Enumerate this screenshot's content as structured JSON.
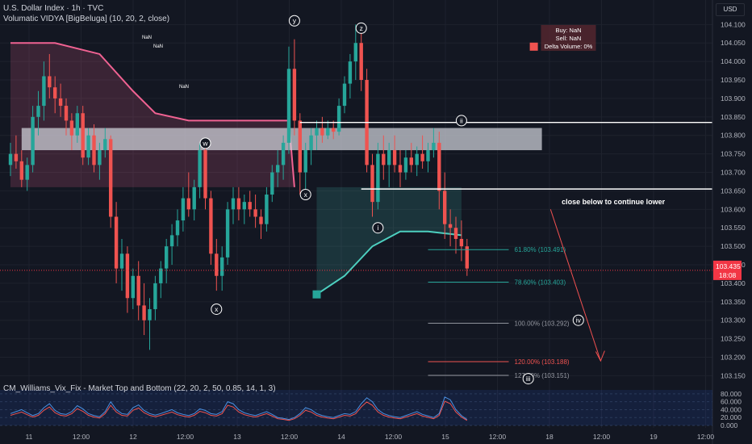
{
  "header": {
    "symbol": "U.S. Dollar Index · 1h · TVC",
    "indicator": "Volumatic VIDYA [BigBeluga] (10, 20, 2, close)",
    "currency_button": "USD"
  },
  "oscillator": {
    "title": "CM_Williams_Vix_Fix - Market Top and Bottom (22, 20, 2, 50, 0.85, 14, 1, 3)"
  },
  "colors": {
    "background": "#131722",
    "up": "#26a69a",
    "down": "#ef5350",
    "vidya_bear": "#f06292",
    "vidya_bull": "#4dd0c0",
    "zone": "#d1d4dc",
    "arrow": "#f05050",
    "price_label": "#f23645"
  },
  "chart_data": {
    "type": "candlestick",
    "symbol": "U.S. Dollar Index",
    "timeframe": "1h",
    "y_axis": {
      "ticks": [
        "104.100",
        "104.050",
        "104.000",
        "103.950",
        "103.900",
        "103.850",
        "103.800",
        "103.750",
        "103.700",
        "103.650",
        "103.600",
        "103.550",
        "103.500",
        "103.450",
        "103.400",
        "103.350",
        "103.300",
        "103.250",
        "103.200",
        "103.150"
      ],
      "range": [
        103.14,
        104.14
      ]
    },
    "x_axis": {
      "ticks": [
        "11",
        "12:00",
        "12",
        "12:00",
        "13",
        "12:00",
        "14",
        "12:00",
        "15",
        "12:00",
        "18",
        "12:00",
        "19",
        "12:00"
      ]
    },
    "candles": [
      [
        103.72,
        103.78,
        103.69,
        103.75
      ],
      [
        103.75,
        103.8,
        103.71,
        103.73
      ],
      [
        103.73,
        103.76,
        103.66,
        103.68
      ],
      [
        103.68,
        103.74,
        103.65,
        103.72
      ],
      [
        103.72,
        103.88,
        103.7,
        103.85
      ],
      [
        103.85,
        103.92,
        103.8,
        103.88
      ],
      [
        103.88,
        104.0,
        103.84,
        103.96
      ],
      [
        103.96,
        104.02,
        103.9,
        103.93
      ],
      [
        103.93,
        103.96,
        103.86,
        103.9
      ],
      [
        103.9,
        103.94,
        103.85,
        103.88
      ],
      [
        103.88,
        103.9,
        103.8,
        103.84
      ],
      [
        103.84,
        103.86,
        103.76,
        103.8
      ],
      [
        103.8,
        103.88,
        103.78,
        103.86
      ],
      [
        103.86,
        103.88,
        103.72,
        103.74
      ],
      [
        103.74,
        103.82,
        103.72,
        103.8
      ],
      [
        103.8,
        103.83,
        103.7,
        103.72
      ],
      [
        103.72,
        103.78,
        103.68,
        103.76
      ],
      [
        103.76,
        103.82,
        103.74,
        103.79
      ],
      [
        103.79,
        103.8,
        103.55,
        103.58
      ],
      [
        103.58,
        103.62,
        103.4,
        103.44
      ],
      [
        103.44,
        103.52,
        103.38,
        103.48
      ],
      [
        103.48,
        103.5,
        103.32,
        103.36
      ],
      [
        103.36,
        103.44,
        103.33,
        103.42
      ],
      [
        103.42,
        103.46,
        103.3,
        103.34
      ],
      [
        103.34,
        103.4,
        103.26,
        103.3
      ],
      [
        103.3,
        103.36,
        103.22,
        103.33
      ],
      [
        103.33,
        103.42,
        103.3,
        103.4
      ],
      [
        103.4,
        103.46,
        103.36,
        103.44
      ],
      [
        103.44,
        103.52,
        103.4,
        103.5
      ],
      [
        103.5,
        103.56,
        103.45,
        103.53
      ],
      [
        103.53,
        103.6,
        103.5,
        103.57
      ],
      [
        103.57,
        103.66,
        103.54,
        103.63
      ],
      [
        103.63,
        103.7,
        103.58,
        103.6
      ],
      [
        103.6,
        103.68,
        103.57,
        103.66
      ],
      [
        103.66,
        103.78,
        103.63,
        103.76
      ],
      [
        103.76,
        103.78,
        103.6,
        103.63
      ],
      [
        103.63,
        103.65,
        103.45,
        103.48
      ],
      [
        103.48,
        103.52,
        103.38,
        103.42
      ],
      [
        103.42,
        103.5,
        103.38,
        103.47
      ],
      [
        103.47,
        103.62,
        103.45,
        103.6
      ],
      [
        103.6,
        103.66,
        103.56,
        103.63
      ],
      [
        103.63,
        103.66,
        103.57,
        103.6
      ],
      [
        103.6,
        103.64,
        103.56,
        103.62
      ],
      [
        103.62,
        103.65,
        103.58,
        103.6
      ],
      [
        103.6,
        103.64,
        103.55,
        103.58
      ],
      [
        103.58,
        103.6,
        103.52,
        103.56
      ],
      [
        103.56,
        103.66,
        103.54,
        103.64
      ],
      [
        103.64,
        103.72,
        103.62,
        103.7
      ],
      [
        103.7,
        103.76,
        103.66,
        103.72
      ],
      [
        103.72,
        103.8,
        103.68,
        103.78
      ],
      [
        103.78,
        104.04,
        103.75,
        103.98
      ],
      [
        103.98,
        104.06,
        103.8,
        103.84
      ],
      [
        103.84,
        103.86,
        103.64,
        103.7
      ],
      [
        103.7,
        103.78,
        103.65,
        103.76
      ],
      [
        103.76,
        103.82,
        103.72,
        103.8
      ],
      [
        103.8,
        103.84,
        103.76,
        103.82
      ],
      [
        103.82,
        103.85,
        103.78,
        103.8
      ],
      [
        103.8,
        103.84,
        103.79,
        103.82
      ],
      [
        103.82,
        103.84,
        103.79,
        103.81
      ],
      [
        103.81,
        103.9,
        103.8,
        103.88
      ],
      [
        103.88,
        103.96,
        103.86,
        103.94
      ],
      [
        103.94,
        104.02,
        103.9,
        104.0
      ],
      [
        104.0,
        104.1,
        103.95,
        104.05
      ],
      [
        104.05,
        104.08,
        103.92,
        103.95
      ],
      [
        103.95,
        103.98,
        103.7,
        103.72
      ],
      [
        103.72,
        103.75,
        103.58,
        103.62
      ],
      [
        103.62,
        103.78,
        103.6,
        103.75
      ],
      [
        103.75,
        103.8,
        103.68,
        103.72
      ],
      [
        103.72,
        103.78,
        103.66,
        103.76
      ],
      [
        103.76,
        103.8,
        103.7,
        103.72
      ],
      [
        103.72,
        103.76,
        103.66,
        103.7
      ],
      [
        103.7,
        103.76,
        103.68,
        103.74
      ],
      [
        103.74,
        103.78,
        103.7,
        103.72
      ],
      [
        103.72,
        103.77,
        103.69,
        103.75
      ],
      [
        103.75,
        103.8,
        103.71,
        103.73
      ],
      [
        103.73,
        103.78,
        103.7,
        103.76
      ],
      [
        103.76,
        103.82,
        103.74,
        103.78
      ],
      [
        103.78,
        103.81,
        103.6,
        103.65
      ],
      [
        103.65,
        103.7,
        103.52,
        103.56
      ],
      [
        103.56,
        103.6,
        103.5,
        103.55
      ],
      [
        103.55,
        103.58,
        103.48,
        103.52
      ],
      [
        103.52,
        103.57,
        103.46,
        103.5
      ],
      [
        103.5,
        103.52,
        103.42,
        103.44
      ]
    ],
    "last_price": "103.435",
    "last_price_countdown": "18:08",
    "vidya_line": [
      [
        0,
        104.05
      ],
      [
        8,
        104.05
      ],
      [
        16,
        104.02
      ],
      [
        22,
        103.92
      ],
      [
        26,
        103.86
      ],
      [
        32,
        103.84
      ],
      [
        50,
        103.84
      ],
      [
        51,
        103.66
      ],
      [
        55,
        103.37
      ],
      [
        60,
        103.42
      ],
      [
        65,
        103.5
      ],
      [
        70,
        103.54
      ],
      [
        75,
        103.54
      ],
      [
        81,
        103.53
      ]
    ],
    "zone": {
      "top": 103.82,
      "bottom": 103.76,
      "start": 2,
      "end": 94
    },
    "horizontal_lines": [
      {
        "value": 103.835,
        "start": 52
      },
      {
        "value": 103.655,
        "start": 63
      }
    ],
    "fibonacci_levels": [
      {
        "label": "61.80% (103.491)",
        "value": 103.491,
        "color": "#26a69a"
      },
      {
        "label": "78.60% (103.403)",
        "value": 103.403,
        "color": "#26a69a"
      },
      {
        "label": "100.00% (103.292)",
        "value": 103.292,
        "color": "#9598a1"
      },
      {
        "label": "120.00% (103.188)",
        "value": 103.188,
        "color": "#ef5350"
      },
      {
        "label": "127.20% (103.151)",
        "value": 103.151,
        "color": "#9598a1"
      }
    ],
    "wave_labels": [
      {
        "label": "w",
        "index": 35,
        "value": 103.779
      },
      {
        "label": "x",
        "index": 37,
        "value": 103.33
      },
      {
        "label": "y",
        "index": 51,
        "value": 104.11
      },
      {
        "label": "x",
        "index": 53,
        "value": 103.64
      },
      {
        "label": "z",
        "index": 63,
        "value": 104.09
      },
      {
        "label": "i",
        "index": 66,
        "value": 103.55
      },
      {
        "label": "ii",
        "index": 81,
        "value": 103.84
      },
      {
        "label": "iii",
        "index": 93,
        "value": 103.142
      },
      {
        "label": "iv",
        "index": 102,
        "value": 103.3
      }
    ],
    "annotations": {
      "text": "close below to continue lower",
      "text_value": 103.62,
      "stats": [
        "Buy: NaN",
        "Sell: NaN",
        "Delta Volume: 0%"
      ],
      "nan_labels": [
        "NaN",
        "NaN",
        "NaN"
      ]
    },
    "oscillator": {
      "y_ticks": [
        "80.000",
        "60.000",
        "40.000",
        "20.000",
        "0.000"
      ],
      "range": [
        0,
        90
      ],
      "values": [
        30,
        35,
        40,
        32,
        25,
        30,
        45,
        55,
        38,
        30,
        28,
        35,
        50,
        42,
        30,
        25,
        22,
        35,
        60,
        40,
        30,
        28,
        45,
        52,
        38,
        30,
        26,
        30,
        35,
        40,
        32,
        28,
        25,
        30,
        42,
        38,
        30,
        28,
        35,
        60,
        55,
        40,
        32,
        28,
        25,
        30,
        35,
        28,
        20,
        18,
        15,
        20,
        30,
        45,
        40,
        30,
        25,
        22,
        20,
        25,
        30,
        28,
        35,
        55,
        70,
        60,
        40,
        30,
        25,
        22,
        20,
        25,
        30,
        35,
        28,
        24,
        20,
        30,
        72,
        65,
        40,
        25,
        15
      ]
    }
  }
}
